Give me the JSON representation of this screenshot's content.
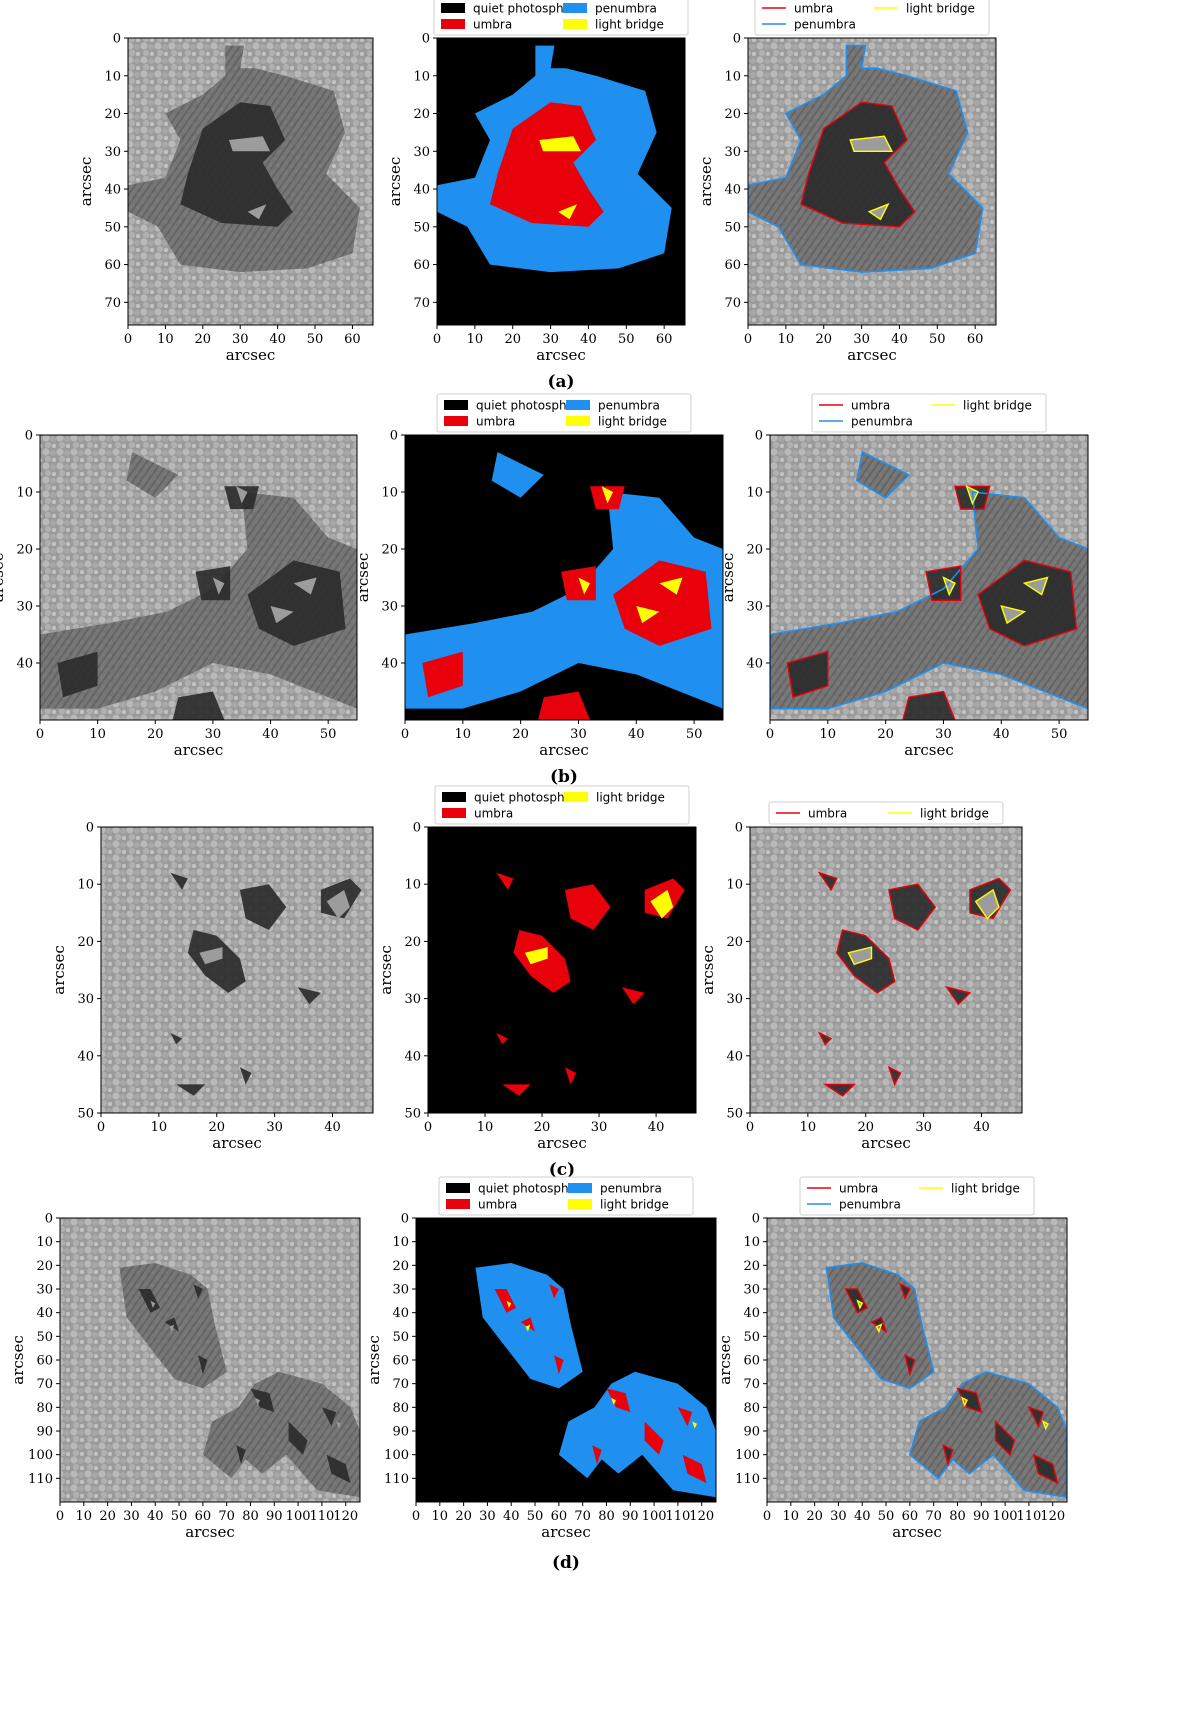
{
  "figure": {
    "rows": [
      {
        "label": "(a)",
        "xlabel": "arcsec",
        "ylabel": "arcsec",
        "x_ticks": [
          "0",
          "10",
          "20",
          "30",
          "40",
          "50",
          "60"
        ],
        "y_ticks": [
          "0",
          "10",
          "20",
          "30",
          "40",
          "50",
          "60",
          "70"
        ],
        "xlim": [
          0,
          65.5
        ],
        "ylim": [
          0,
          76
        ],
        "mask_legend": [
          "quiet photosphere",
          "umbra",
          "penumbra",
          "light bridge"
        ],
        "contour_legend": [
          "umbra",
          "penumbra",
          "light bridge"
        ],
        "regions": {
          "penumbra": [
            [
              [
                34,
                8
              ],
              [
                42,
                10
              ],
              [
                55,
                14
              ],
              [
                58,
                25
              ],
              [
                53,
                36
              ],
              [
                62,
                45
              ],
              [
                60,
                57
              ],
              [
                48,
                61
              ],
              [
                30,
                62
              ],
              [
                14,
                60
              ],
              [
                8,
                50
              ],
              [
                0,
                46
              ],
              [
                0,
                39
              ],
              [
                10,
                37
              ],
              [
                14,
                27
              ],
              [
                10,
                20
              ],
              [
                20,
                15
              ],
              [
                26,
                10
              ],
              [
                26,
                2
              ],
              [
                31,
                2
              ],
              [
                30,
                8
              ]
            ]
          ],
          "umbra": [
            [
              [
                20,
                24
              ],
              [
                30,
                17
              ],
              [
                38,
                18
              ],
              [
                42,
                27
              ],
              [
                36,
                33
              ],
              [
                40,
                40
              ],
              [
                44,
                46
              ],
              [
                40,
                50
              ],
              [
                25,
                49
              ],
              [
                14,
                44
              ],
              [
                16,
                36
              ]
            ]
          ],
          "light_bridge": [
            [
              [
                27,
                27
              ],
              [
                36,
                26
              ],
              [
                38,
                30
              ],
              [
                28,
                30
              ]
            ],
            [
              [
                32,
                46
              ],
              [
                37,
                44
              ],
              [
                35,
                48
              ]
            ]
          ]
        }
      },
      {
        "label": "(b)",
        "xlabel": "arcsec",
        "ylabel": "arcsec",
        "x_ticks": [
          "0",
          "10",
          "20",
          "30",
          "40",
          "50"
        ],
        "y_ticks": [
          "0",
          "10",
          "20",
          "30",
          "40"
        ],
        "xlim": [
          0,
          55
        ],
        "ylim": [
          0,
          50
        ],
        "mask_legend": [
          "quiet photosphere",
          "umbra",
          "penumbra",
          "light bridge"
        ],
        "contour_legend": [
          "umbra",
          "penumbra",
          "light bridge"
        ],
        "regions": {
          "penumbra": [
            [
              [
                35,
                10
              ],
              [
                44,
                11
              ],
              [
                50,
                18
              ],
              [
                55,
                20
              ],
              [
                55,
                48
              ],
              [
                40,
                42
              ],
              [
                30,
                40
              ],
              [
                20,
                45
              ],
              [
                10,
                48
              ],
              [
                0,
                48
              ],
              [
                0,
                35
              ],
              [
                12,
                33
              ],
              [
                22,
                31
              ],
              [
                30,
                27
              ],
              [
                36,
                20
              ]
            ],
            [
              [
                16,
                3
              ],
              [
                24,
                7
              ],
              [
                20,
                11
              ],
              [
                15,
                8
              ]
            ]
          ],
          "umbra": [
            [
              [
                32,
                9
              ],
              [
                38,
                9
              ],
              [
                37,
                13
              ],
              [
                33,
                13
              ]
            ],
            [
              [
                27,
                24
              ],
              [
                33,
                23
              ],
              [
                33,
                29
              ],
              [
                28,
                29
              ]
            ],
            [
              [
                36,
                28
              ],
              [
                44,
                22
              ],
              [
                52,
                24
              ],
              [
                53,
                34
              ],
              [
                44,
                37
              ],
              [
                38,
                34
              ]
            ],
            [
              [
                3,
                40
              ],
              [
                10,
                38
              ],
              [
                10,
                44
              ],
              [
                4,
                46
              ]
            ],
            [
              [
                24,
                46
              ],
              [
                30,
                45
              ],
              [
                32,
                50
              ],
              [
                23,
                50
              ]
            ]
          ],
          "light_bridge": [
            [
              [
                34,
                9
              ],
              [
                36,
                10
              ],
              [
                35,
                12
              ]
            ],
            [
              [
                30,
                25
              ],
              [
                32,
                26
              ],
              [
                31,
                28
              ]
            ],
            [
              [
                44,
                26
              ],
              [
                48,
                25
              ],
              [
                47,
                28
              ]
            ],
            [
              [
                40,
                30
              ],
              [
                44,
                31
              ],
              [
                41,
                33
              ]
            ]
          ]
        }
      },
      {
        "label": "(c)",
        "xlabel": "arcsec",
        "ylabel": "arcsec",
        "x_ticks": [
          "0",
          "10",
          "20",
          "30",
          "40"
        ],
        "y_ticks": [
          "0",
          "10",
          "20",
          "30",
          "40",
          "50"
        ],
        "xlim": [
          0,
          47
        ],
        "ylim": [
          0,
          50
        ],
        "mask_legend": [
          "quiet photosphere",
          "umbra",
          "light bridge"
        ],
        "contour_legend": [
          "umbra",
          "light bridge"
        ],
        "regions": {
          "penumbra": [],
          "umbra": [
            [
              [
                16,
                18
              ],
              [
                20,
                19
              ],
              [
                24,
                23
              ],
              [
                25,
                27
              ],
              [
                22,
                29
              ],
              [
                18,
                26
              ],
              [
                15,
                22
              ]
            ],
            [
              [
                24,
                11
              ],
              [
                29,
                10
              ],
              [
                32,
                14
              ],
              [
                29,
                18
              ],
              [
                25,
                16
              ]
            ],
            [
              [
                38,
                11
              ],
              [
                43,
                9
              ],
              [
                45,
                11
              ],
              [
                42,
                16
              ],
              [
                38,
                15
              ]
            ],
            [
              [
                12,
                8
              ],
              [
                15,
                9
              ],
              [
                14,
                11
              ]
            ],
            [
              [
                34,
                28
              ],
              [
                38,
                29
              ],
              [
                36,
                31
              ]
            ],
            [
              [
                13,
                45
              ],
              [
                18,
                45
              ],
              [
                16,
                47
              ]
            ],
            [
              [
                24,
                42
              ],
              [
                26,
                43
              ],
              [
                25,
                45
              ]
            ],
            [
              [
                12,
                36
              ],
              [
                14,
                37
              ],
              [
                13,
                38
              ]
            ]
          ],
          "light_bridge": [
            [
              [
                17,
                22
              ],
              [
                21,
                21
              ],
              [
                21,
                23
              ],
              [
                18,
                24
              ]
            ],
            [
              [
                39,
                13
              ],
              [
                42,
                11
              ],
              [
                43,
                14
              ],
              [
                41,
                16
              ]
            ]
          ]
        }
      },
      {
        "label": "(d)",
        "xlabel": "arcsec",
        "ylabel": "arcsec",
        "x_ticks": [
          "0",
          "10",
          "20",
          "30",
          "40",
          "50",
          "60",
          "70",
          "80",
          "90",
          "100",
          "110",
          "120"
        ],
        "y_ticks": [
          "0",
          "10",
          "20",
          "30",
          "40",
          "50",
          "60",
          "70",
          "80",
          "90",
          "100",
          "110"
        ],
        "xlim": [
          0,
          126
        ],
        "ylim": [
          0,
          120
        ],
        "mask_legend": [
          "quiet photosphere",
          "umbra",
          "penumbra",
          "light bridge"
        ],
        "contour_legend": [
          "umbra",
          "penumbra",
          "light bridge"
        ],
        "regions": {
          "penumbra": [
            [
              [
                25,
                21
              ],
              [
                40,
                19
              ],
              [
                55,
                24
              ],
              [
                62,
                30
              ],
              [
                65,
                45
              ],
              [
                70,
                65
              ],
              [
                60,
                72
              ],
              [
                48,
                68
              ],
              [
                38,
                55
              ],
              [
                28,
                42
              ]
            ],
            [
              [
                64,
                86
              ],
              [
                75,
                80
              ],
              [
                82,
                70
              ],
              [
                92,
                65
              ],
              [
                110,
                70
              ],
              [
                122,
                80
              ],
              [
                126,
                90
              ],
              [
                126,
                118
              ],
              [
                108,
                115
              ],
              [
                95,
                100
              ],
              [
                85,
                108
              ],
              [
                78,
                102
              ],
              [
                72,
                110
              ],
              [
                60,
                100
              ]
            ]
          ],
          "umbra": [
            [
              [
                33,
                30
              ],
              [
                38,
                30
              ],
              [
                42,
                38
              ],
              [
                38,
                40
              ]
            ],
            [
              [
                56,
                28
              ],
              [
                60,
                30
              ],
              [
                58,
                34
              ]
            ],
            [
              [
                44,
                44
              ],
              [
                48,
                42
              ],
              [
                50,
                48
              ]
            ],
            [
              [
                58,
                58
              ],
              [
                62,
                60
              ],
              [
                60,
                66
              ]
            ],
            [
              [
                80,
                72
              ],
              [
                88,
                74
              ],
              [
                90,
                82
              ],
              [
                84,
                80
              ]
            ],
            [
              [
                96,
                86
              ],
              [
                104,
                94
              ],
              [
                102,
                100
              ],
              [
                96,
                94
              ]
            ],
            [
              [
                110,
                80
              ],
              [
                116,
                82
              ],
              [
                114,
                88
              ]
            ],
            [
              [
                112,
                100
              ],
              [
                120,
                104
              ],
              [
                122,
                112
              ],
              [
                114,
                108
              ]
            ],
            [
              [
                74,
                96
              ],
              [
                78,
                98
              ],
              [
                76,
                104
              ]
            ]
          ],
          "light_bridge": [
            [
              [
                38,
                35
              ],
              [
                40,
                36
              ],
              [
                39,
                38
              ]
            ],
            [
              [
                46,
                46
              ],
              [
                48,
                45
              ],
              [
                47,
                48
              ]
            ],
            [
              [
                82,
                76
              ],
              [
                84,
                77
              ],
              [
                83,
                79
              ]
            ],
            [
              [
                116,
                86
              ],
              [
                118,
                87
              ],
              [
                117,
                89
              ]
            ]
          ]
        }
      }
    ]
  },
  "colors": {
    "quiet": "#000000",
    "umbra": "#e8000b",
    "penumbra": "#1f8ff0",
    "light_bridge": "#ffff00",
    "image_base": "#8f8f8f",
    "image_dark": "#2a2a2a"
  }
}
